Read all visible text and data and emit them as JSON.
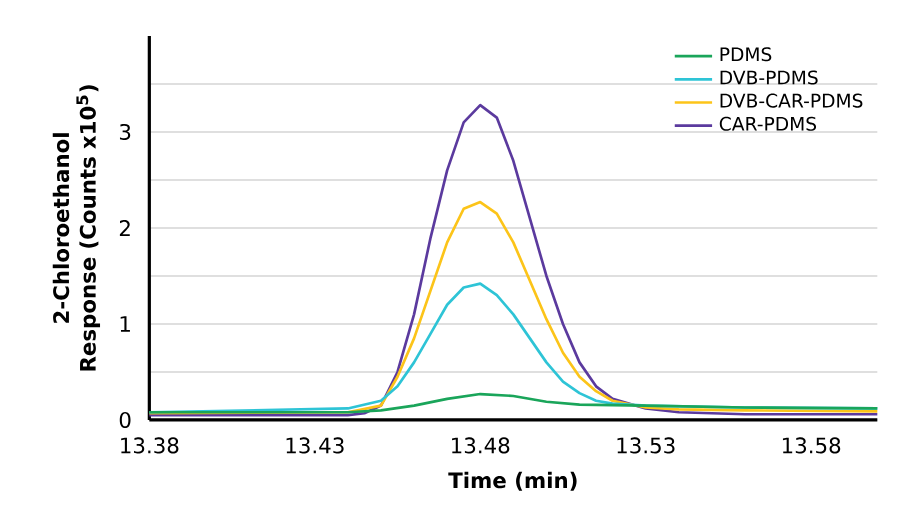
{
  "chart_data": {
    "type": "line",
    "xlabel": "Time (min)",
    "ylabel": "2-Chloroethanol Response (Counts x10$^{5}$)",
    "xlim": [
      13.38,
      13.6
    ],
    "xticks": [
      13.38,
      13.43,
      13.48,
      13.53,
      13.58
    ],
    "ylim": [
      0,
      4
    ],
    "yticks": [
      0,
      {
        "value": 0.5,
        "label": null
      },
      1,
      {
        "value": 1.5,
        "label": null
      },
      2,
      {
        "value": 2.5,
        "label": null
      },
      3,
      {
        "value": 3.5,
        "label": null
      }
    ],
    "grid": "y",
    "legend": "top right",
    "marker": "none",
    "line_style": "solid",
    "series": [
      {
        "name": "PDMS",
        "color": "#1aa55a",
        "x": [
          13.38,
          13.44,
          13.45,
          13.46,
          13.47,
          13.48,
          13.49,
          13.5,
          13.51,
          13.53,
          13.56,
          13.6
        ],
        "values": [
          0.08,
          0.08,
          0.1,
          0.15,
          0.22,
          0.27,
          0.25,
          0.19,
          0.16,
          0.15,
          0.13,
          0.12
        ]
      },
      {
        "name": "DVB-PDMS",
        "color": "#2ec4d6",
        "x": [
          13.38,
          13.44,
          13.45,
          13.455,
          13.46,
          13.465,
          13.47,
          13.475,
          13.48,
          13.485,
          13.49,
          13.495,
          13.5,
          13.505,
          13.51,
          13.515,
          13.52,
          13.53,
          13.56,
          13.6
        ],
        "values": [
          0.08,
          0.12,
          0.2,
          0.35,
          0.6,
          0.9,
          1.2,
          1.38,
          1.42,
          1.3,
          1.1,
          0.85,
          0.6,
          0.4,
          0.28,
          0.2,
          0.17,
          0.15,
          0.13,
          0.12
        ]
      },
      {
        "name": "DVB-CAR-PDMS",
        "color": "#fcc419",
        "x": [
          13.38,
          13.44,
          13.45,
          13.455,
          13.46,
          13.465,
          13.47,
          13.475,
          13.48,
          13.485,
          13.49,
          13.495,
          13.5,
          13.505,
          13.51,
          13.515,
          13.52,
          13.53,
          13.54,
          13.56,
          13.6
        ],
        "values": [
          0.07,
          0.08,
          0.15,
          0.45,
          0.85,
          1.35,
          1.85,
          2.2,
          2.27,
          2.15,
          1.85,
          1.45,
          1.05,
          0.7,
          0.45,
          0.3,
          0.2,
          0.13,
          0.11,
          0.1,
          0.09
        ]
      },
      {
        "name": "CAR-PDMS",
        "color": "#5b3a9e",
        "x": [
          13.38,
          13.44,
          13.445,
          13.45,
          13.455,
          13.46,
          13.465,
          13.47,
          13.475,
          13.48,
          13.485,
          13.49,
          13.495,
          13.5,
          13.505,
          13.51,
          13.515,
          13.52,
          13.53,
          13.54,
          13.56,
          13.6
        ],
        "values": [
          0.05,
          0.05,
          0.07,
          0.15,
          0.5,
          1.1,
          1.9,
          2.6,
          3.1,
          3.28,
          3.15,
          2.7,
          2.1,
          1.5,
          1.0,
          0.6,
          0.35,
          0.22,
          0.12,
          0.08,
          0.06,
          0.06
        ]
      }
    ]
  }
}
